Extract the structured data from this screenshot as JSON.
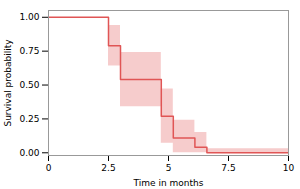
{
  "chart_data": {
    "type": "step",
    "xlabel": "Time in months",
    "ylabel": "Survival probability",
    "x": [
      0.0,
      1.8,
      2.5,
      3.0,
      4.0,
      4.7,
      5.2,
      6.1,
      6.6,
      10.0
    ],
    "values": [
      1.0,
      1.0,
      0.79,
      0.54,
      0.54,
      0.27,
      0.11,
      0.04,
      0.0,
      0.0
    ],
    "ci_upper": [
      1.0,
      1.0,
      0.94,
      0.74,
      0.74,
      0.47,
      0.24,
      0.15,
      0.03,
      0.03
    ],
    "ci_lower": [
      1.0,
      1.0,
      0.64,
      0.34,
      0.34,
      0.07,
      0.0,
      0.0,
      0.0,
      0.0
    ],
    "color": "#e05555",
    "xlim": [
      0,
      10
    ],
    "ylim": [
      -0.02,
      1.05
    ],
    "xticks": [
      0,
      2.5,
      5,
      7.5,
      10
    ],
    "yticks": [
      {
        "value": 0,
        "label": "0.00"
      },
      {
        "value": 0.25,
        "label": "0.25"
      },
      {
        "value": 0.5,
        "label": "0.50"
      },
      {
        "value": 0.75,
        "label": "0.75"
      },
      {
        "value": 1,
        "label": "1.00"
      }
    ]
  }
}
